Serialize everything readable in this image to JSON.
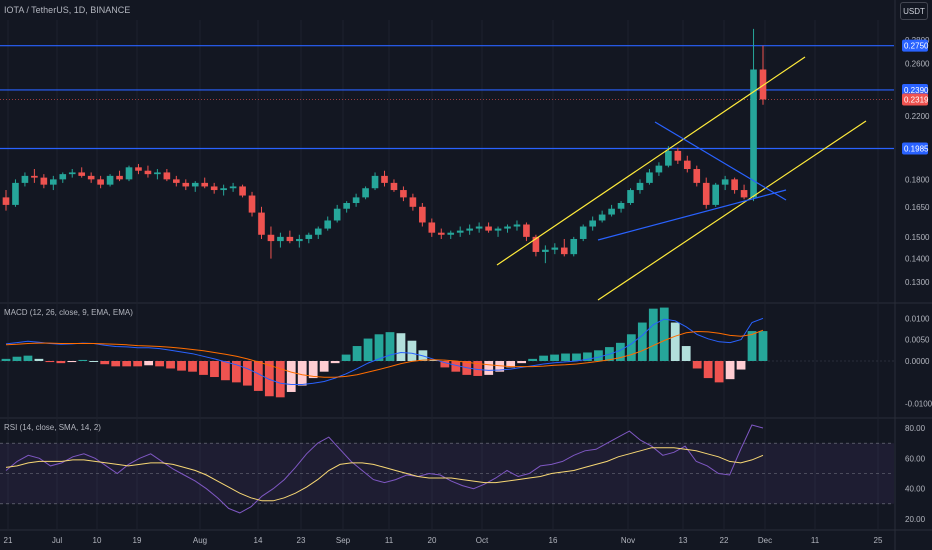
{
  "header": {
    "symbol_title": "IOTA / TetherUS, 1D, BINANCE",
    "currency": "USDT"
  },
  "indicators": {
    "macd_label": "MACD (12, 26, close, 9, EMA, EMA)",
    "rsi_label": "RSI (14, close, SMA, 14, 2)"
  },
  "colors": {
    "background": "#131722",
    "up": "#26a69a",
    "down": "#ef5350",
    "level_line": "#2962ff",
    "channel": "#ffeb3b",
    "macd_line": "#2962ff",
    "signal_line": "#ff6d00",
    "rsi_line": "#7e57c2",
    "rsi_ma": "#f7d774"
  },
  "chart_data": [
    {
      "type": "candlestick",
      "title": "IOTA / TetherUS, 1D, BINANCE",
      "x_ticks": [
        "21",
        "Jul",
        "10",
        "19",
        "Aug",
        "14",
        "23",
        "Sep",
        "11",
        "20",
        "Oct",
        "16",
        "Nov",
        "13",
        "22",
        "Dec",
        "11",
        "25"
      ],
      "y_scale": "log",
      "y_ticks": [
        "0.2800",
        "0.2600",
        "0.2319",
        "0.2200",
        "0.1800",
        "0.1650",
        "0.1500",
        "0.1400",
        "0.1300"
      ],
      "price_tags": [
        {
          "label": "0.2750",
          "color": "#2962ff"
        },
        {
          "label": "0.2390",
          "color": "#2962ff"
        },
        {
          "label": "0.2319",
          "color": "#ef5350"
        },
        {
          "label": "0.1985",
          "color": "#2962ff"
        }
      ],
      "horizontal_levels": [
        0.275,
        0.239,
        0.1985
      ],
      "last_price": 0.2319,
      "candles": [
        [
          0.17,
          0.174,
          0.163,
          0.166
        ],
        [
          0.166,
          0.18,
          0.165,
          0.178
        ],
        [
          0.178,
          0.184,
          0.176,
          0.182
        ],
        [
          0.182,
          0.186,
          0.178,
          0.181
        ],
        [
          0.181,
          0.183,
          0.175,
          0.177
        ],
        [
          0.177,
          0.182,
          0.174,
          0.18
        ],
        [
          0.18,
          0.184,
          0.178,
          0.183
        ],
        [
          0.183,
          0.186,
          0.181,
          0.184
        ],
        [
          0.184,
          0.187,
          0.181,
          0.182
        ],
        [
          0.182,
          0.184,
          0.178,
          0.18
        ],
        [
          0.18,
          0.182,
          0.175,
          0.177
        ],
        [
          0.177,
          0.183,
          0.176,
          0.182
        ],
        [
          0.182,
          0.185,
          0.179,
          0.18
        ],
        [
          0.18,
          0.188,
          0.179,
          0.187
        ],
        [
          0.187,
          0.189,
          0.183,
          0.185
        ],
        [
          0.185,
          0.188,
          0.181,
          0.183
        ],
        [
          0.183,
          0.186,
          0.18,
          0.184
        ],
        [
          0.184,
          0.186,
          0.179,
          0.18
        ],
        [
          0.18,
          0.182,
          0.176,
          0.178
        ],
        [
          0.178,
          0.18,
          0.174,
          0.176
        ],
        [
          0.176,
          0.179,
          0.173,
          0.178
        ],
        [
          0.178,
          0.181,
          0.175,
          0.176
        ],
        [
          0.176,
          0.178,
          0.172,
          0.174
        ],
        [
          0.174,
          0.177,
          0.171,
          0.175
        ],
        [
          0.175,
          0.178,
          0.173,
          0.176
        ],
        [
          0.176,
          0.177,
          0.17,
          0.171
        ],
        [
          0.171,
          0.173,
          0.16,
          0.162
        ],
        [
          0.162,
          0.165,
          0.149,
          0.151
        ],
        [
          0.151,
          0.155,
          0.14,
          0.148
        ],
        [
          0.148,
          0.152,
          0.145,
          0.15
        ],
        [
          0.15,
          0.153,
          0.147,
          0.148
        ],
        [
          0.148,
          0.151,
          0.145,
          0.149
        ],
        [
          0.149,
          0.152,
          0.147,
          0.151
        ],
        [
          0.151,
          0.155,
          0.149,
          0.154
        ],
        [
          0.154,
          0.16,
          0.153,
          0.158
        ],
        [
          0.158,
          0.166,
          0.157,
          0.164
        ],
        [
          0.164,
          0.168,
          0.162,
          0.167
        ],
        [
          0.167,
          0.172,
          0.165,
          0.17
        ],
        [
          0.17,
          0.176,
          0.169,
          0.175
        ],
        [
          0.175,
          0.184,
          0.174,
          0.182
        ],
        [
          0.182,
          0.185,
          0.176,
          0.178
        ],
        [
          0.178,
          0.18,
          0.173,
          0.174
        ],
        [
          0.174,
          0.176,
          0.168,
          0.17
        ],
        [
          0.17,
          0.172,
          0.163,
          0.165
        ],
        [
          0.165,
          0.167,
          0.155,
          0.157
        ],
        [
          0.157,
          0.159,
          0.15,
          0.152
        ],
        [
          0.152,
          0.154,
          0.149,
          0.151
        ],
        [
          0.151,
          0.153,
          0.149,
          0.152
        ],
        [
          0.152,
          0.155,
          0.15,
          0.153
        ],
        [
          0.153,
          0.156,
          0.151,
          0.154
        ],
        [
          0.154,
          0.157,
          0.152,
          0.155
        ],
        [
          0.155,
          0.157,
          0.152,
          0.153
        ],
        [
          0.153,
          0.155,
          0.15,
          0.154
        ],
        [
          0.154,
          0.156,
          0.152,
          0.155
        ],
        [
          0.155,
          0.158,
          0.153,
          0.156
        ],
        [
          0.156,
          0.157,
          0.148,
          0.15
        ],
        [
          0.15,
          0.151,
          0.141,
          0.143
        ],
        [
          0.143,
          0.146,
          0.138,
          0.144
        ],
        [
          0.144,
          0.147,
          0.142,
          0.145
        ],
        [
          0.145,
          0.149,
          0.141,
          0.142
        ],
        [
          0.142,
          0.15,
          0.141,
          0.149
        ],
        [
          0.149,
          0.156,
          0.148,
          0.155
        ],
        [
          0.155,
          0.16,
          0.153,
          0.158
        ],
        [
          0.158,
          0.163,
          0.157,
          0.161
        ],
        [
          0.161,
          0.166,
          0.16,
          0.164
        ],
        [
          0.164,
          0.168,
          0.162,
          0.167
        ],
        [
          0.167,
          0.175,
          0.166,
          0.174
        ],
        [
          0.174,
          0.18,
          0.172,
          0.178
        ],
        [
          0.178,
          0.186,
          0.177,
          0.184
        ],
        [
          0.184,
          0.19,
          0.182,
          0.188
        ],
        [
          0.188,
          0.2,
          0.187,
          0.197
        ],
        [
          0.197,
          0.199,
          0.189,
          0.191
        ],
        [
          0.191,
          0.194,
          0.184,
          0.186
        ],
        [
          0.186,
          0.188,
          0.176,
          0.178
        ],
        [
          0.178,
          0.181,
          0.164,
          0.166
        ],
        [
          0.166,
          0.178,
          0.165,
          0.177
        ],
        [
          0.177,
          0.182,
          0.174,
          0.18
        ],
        [
          0.18,
          0.181,
          0.172,
          0.174
        ],
        [
          0.174,
          0.177,
          0.169,
          0.17
        ],
        [
          0.17,
          0.29,
          0.168,
          0.255
        ],
        [
          0.255,
          0.275,
          0.228,
          0.2319
        ]
      ]
    },
    {
      "type": "line",
      "title": "MACD (12, 26, close, 9, EMA, EMA)",
      "y_ticks": [
        "0.0100",
        "0.0050",
        "0.0000",
        "-0.0100"
      ],
      "series": [
        {
          "values": [
            0.004,
            0.0043,
            0.0046,
            0.0044,
            0.0041,
            0.0039,
            0.004,
            0.0042,
            0.0041,
            0.0037,
            0.0034,
            0.0033,
            0.0031,
            0.0031,
            0.0029,
            0.0025,
            0.0021,
            0.0017,
            0.0011,
            0.0005,
            -0.0002,
            -0.0009,
            -0.0018,
            -0.003,
            -0.0043,
            -0.0052,
            -0.0055,
            -0.0055,
            -0.0052,
            -0.0048,
            -0.004,
            -0.003,
            -0.0018,
            -0.0005,
            0.0005,
            0.0014,
            0.002,
            0.0018,
            0.0012,
            0.0004,
            -0.0004,
            -0.001,
            -0.0016,
            -0.002,
            -0.0022,
            -0.0021,
            -0.0019,
            -0.0015,
            -0.0011,
            -0.0007,
            -0.0004,
            -0.0002,
            0.0,
            0.0004,
            0.0009,
            0.0016,
            0.0025,
            0.004,
            0.006,
            0.0085,
            0.0098,
            0.0094,
            0.008,
            0.0062,
            0.0052,
            0.0045,
            0.0043,
            0.005,
            0.009,
            0.01
          ]
        },
        {
          "values": [
            0.0038,
            0.0039,
            0.0041,
            0.0042,
            0.0042,
            0.0041,
            0.0041,
            0.0041,
            0.0041,
            0.004,
            0.0039,
            0.0038,
            0.0036,
            0.0035,
            0.0034,
            0.0032,
            0.003,
            0.0027,
            0.0024,
            0.002,
            0.0016,
            0.0011,
            0.0005,
            -0.0002,
            -0.001,
            -0.0018,
            -0.0026,
            -0.0032,
            -0.0036,
            -0.0038,
            -0.0038,
            -0.0036,
            -0.0032,
            -0.0026,
            -0.002,
            -0.0013,
            -0.0006,
            -0.0001,
            0.0002,
            0.0003,
            0.0002,
            0.0,
            -0.0003,
            -0.0006,
            -0.0009,
            -0.0011,
            -0.0013,
            -0.0013,
            -0.0013,
            -0.0012,
            -0.001,
            -0.0009,
            -0.0007,
            -0.0004,
            -0.0001,
            0.0003,
            0.0008,
            0.0015,
            0.0024,
            0.0036,
            0.0048,
            0.0058,
            0.0066,
            0.0069,
            0.0068,
            0.0065,
            0.006,
            0.0058,
            0.0062,
            0.0072
          ]
        }
      ]
    },
    {
      "type": "line",
      "title": "RSI (14, close, SMA, 14, 2)",
      "y_ticks": [
        "80.00",
        "60.00",
        "40.00",
        "20.00"
      ],
      "series": [
        {
          "values": [
            52,
            58,
            62,
            60,
            55,
            57,
            61,
            63,
            60,
            55,
            50,
            56,
            60,
            63,
            58,
            53,
            49,
            45,
            40,
            34,
            27,
            24,
            28,
            35,
            40,
            46,
            54,
            63,
            70,
            74,
            66,
            58,
            52,
            46,
            44,
            46,
            49,
            48,
            50,
            49,
            45,
            42,
            40,
            43,
            47,
            52,
            48,
            50,
            55,
            56,
            58,
            62,
            65,
            66,
            70,
            74,
            78,
            72,
            68,
            62,
            64,
            68,
            58,
            55,
            50,
            49,
            66,
            82,
            80
          ]
        },
        {
          "values": [
            54,
            55,
            57,
            58,
            58,
            58,
            59,
            59,
            58,
            57,
            56,
            55,
            56,
            57,
            57,
            56,
            54,
            52,
            49,
            45,
            41,
            37,
            34,
            32,
            32,
            34,
            37,
            41,
            46,
            52,
            56,
            57,
            57,
            56,
            54,
            52,
            50,
            48,
            47,
            47,
            47,
            46,
            45,
            44,
            44,
            45,
            46,
            47,
            48,
            50,
            51,
            52,
            54,
            56,
            58,
            61,
            63,
            65,
            67,
            67,
            67,
            66,
            65,
            63,
            61,
            58,
            57,
            59,
            62
          ]
        }
      ]
    }
  ]
}
